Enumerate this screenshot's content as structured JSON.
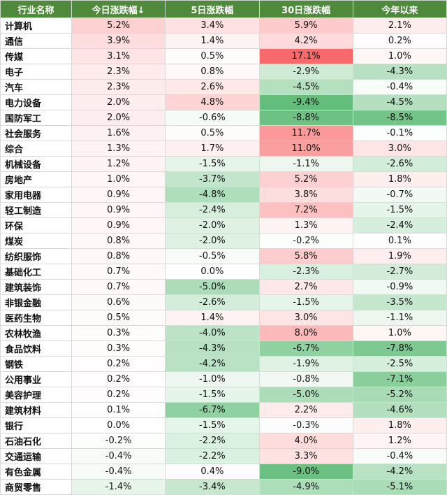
{
  "table": {
    "columns": [
      "行业名称",
      "今日涨跌幅↓",
      "5日涨跌幅",
      "30日涨跌幅",
      "今年以来"
    ],
    "rows": [
      [
        "计算机",
        "5.2%",
        "3.4%",
        "5.9%",
        "2.1%"
      ],
      [
        "通信",
        "3.9%",
        "1.4%",
        "4.2%",
        "0.2%"
      ],
      [
        "传媒",
        "3.1%",
        "0.5%",
        "17.1%",
        "1.0%"
      ],
      [
        "电子",
        "2.3%",
        "0.8%",
        "-2.9%",
        "-4.3%"
      ],
      [
        "汽车",
        "2.3%",
        "2.6%",
        "-4.5%",
        "-0.4%"
      ],
      [
        "电力设备",
        "2.0%",
        "4.8%",
        "-9.4%",
        "-4.5%"
      ],
      [
        "国防军工",
        "2.0%",
        "-0.6%",
        "-8.8%",
        "-8.5%"
      ],
      [
        "社会服务",
        "1.6%",
        "0.5%",
        "11.7%",
        "-0.1%"
      ],
      [
        "综合",
        "1.3%",
        "1.7%",
        "11.0%",
        "3.0%"
      ],
      [
        "机械设备",
        "1.2%",
        "-1.5%",
        "-1.1%",
        "-2.6%"
      ],
      [
        "房地产",
        "1.0%",
        "-3.7%",
        "5.2%",
        "1.8%"
      ],
      [
        "家用电器",
        "0.9%",
        "-4.8%",
        "3.8%",
        "-0.7%"
      ],
      [
        "轻工制造",
        "0.9%",
        "-2.4%",
        "7.2%",
        "-1.5%"
      ],
      [
        "环保",
        "0.9%",
        "-2.0%",
        "1.3%",
        "-2.4%"
      ],
      [
        "煤炭",
        "0.8%",
        "-2.0%",
        "-0.2%",
        "0.1%"
      ],
      [
        "纺织服饰",
        "0.8%",
        "-0.5%",
        "5.8%",
        "1.9%"
      ],
      [
        "基础化工",
        "0.7%",
        "0.0%",
        "-2.3%",
        "-2.7%"
      ],
      [
        "建筑装饰",
        "0.7%",
        "-5.0%",
        "2.7%",
        "-0.9%"
      ],
      [
        "非银金融",
        "0.6%",
        "-2.6%",
        "-1.5%",
        "-3.5%"
      ],
      [
        "医药生物",
        "0.5%",
        "1.4%",
        "3.0%",
        "-1.1%"
      ],
      [
        "农林牧渔",
        "0.3%",
        "-4.0%",
        "8.0%",
        "1.0%"
      ],
      [
        "食品饮料",
        "0.3%",
        "-4.3%",
        "-6.7%",
        "-7.8%"
      ],
      [
        "钢铁",
        "0.2%",
        "-4.2%",
        "-1.9%",
        "-2.5%"
      ],
      [
        "公用事业",
        "0.2%",
        "-1.0%",
        "-0.8%",
        "-7.1%"
      ],
      [
        "美容护理",
        "0.2%",
        "-1.5%",
        "-5.0%",
        "-5.2%"
      ],
      [
        "建筑材料",
        "0.1%",
        "-6.7%",
        "2.2%",
        "-4.6%"
      ],
      [
        "银行",
        "0.0%",
        "-1.5%",
        "-0.3%",
        "1.8%"
      ],
      [
        "石油石化",
        "-0.2%",
        "-2.2%",
        "4.0%",
        "1.2%"
      ],
      [
        "交通运输",
        "-0.4%",
        "-2.2%",
        "3.3%",
        "-0.4%"
      ],
      [
        "有色金属",
        "-0.4%",
        "0.4%",
        "-9.0%",
        "-4.2%"
      ],
      [
        "商贸零售",
        "-1.4%",
        "-3.4%",
        "-4.9%",
        "-5.1%"
      ]
    ]
  }
}
